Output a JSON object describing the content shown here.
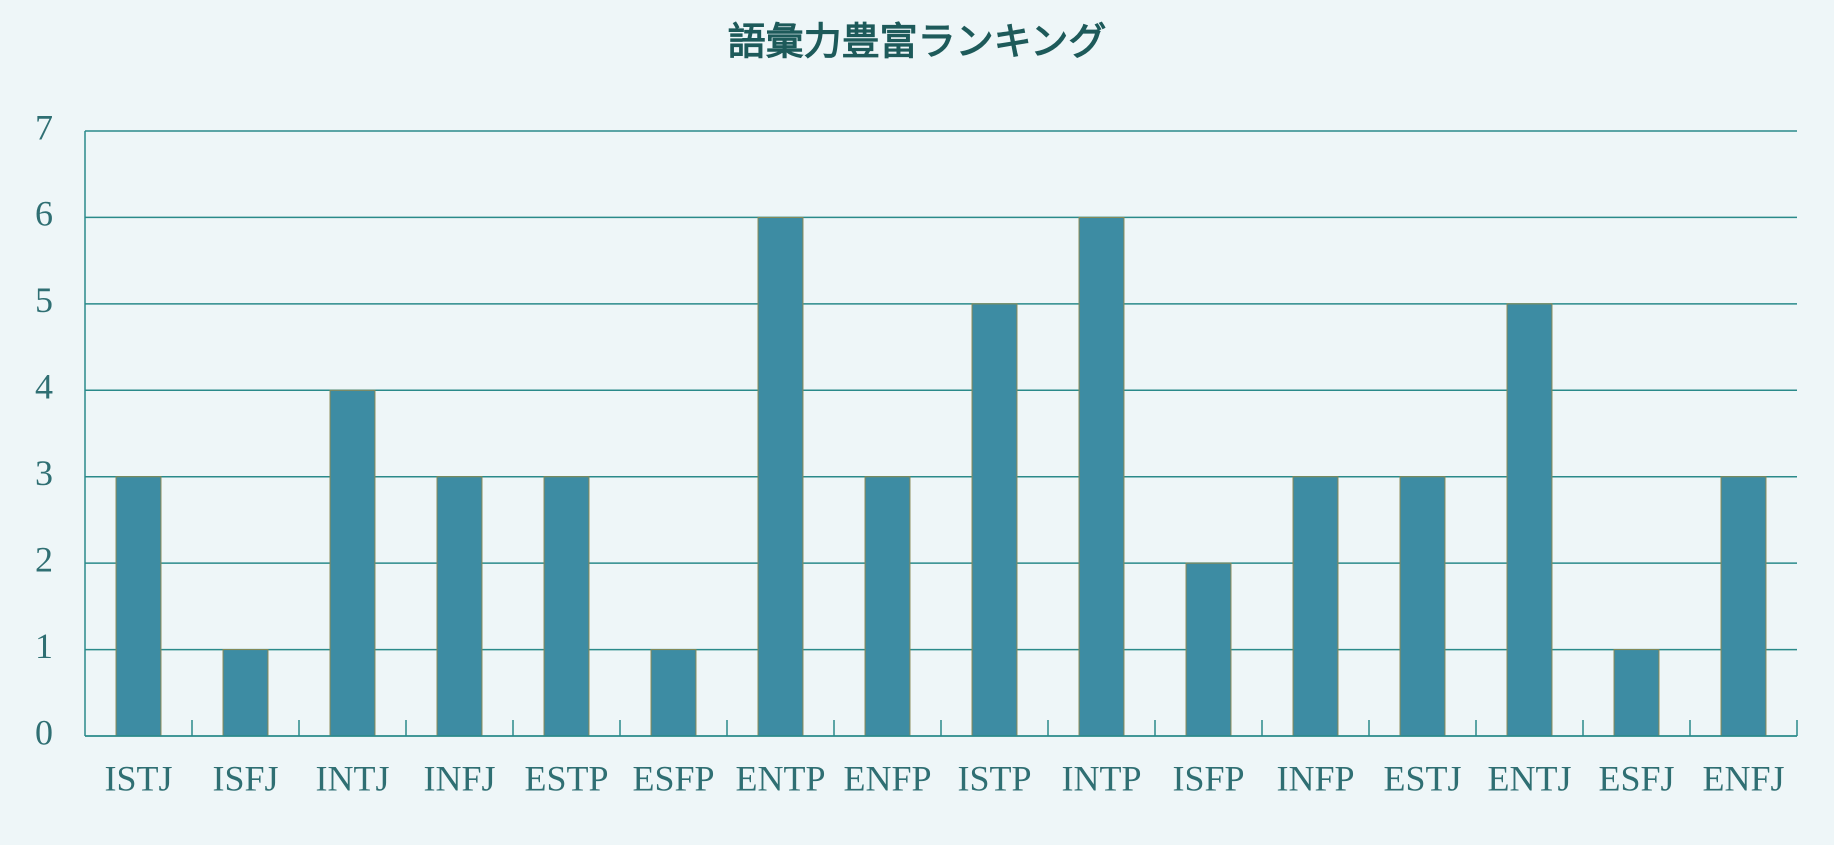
{
  "chart_data": {
    "type": "bar",
    "title": "語彙力豊富ランキング",
    "categories": [
      "ISTJ",
      "ISFJ",
      "INTJ",
      "INFJ",
      "ESTP",
      "ESFP",
      "ENTP",
      "ENFP",
      "ISTP",
      "INTP",
      "ISFP",
      "INFP",
      "ESTJ",
      "ENTJ",
      "ESFJ",
      "ENFJ"
    ],
    "values": [
      3,
      1,
      4,
      3,
      3,
      1,
      6,
      3,
      5,
      6,
      2,
      3,
      3,
      5,
      1,
      3
    ],
    "color": "#3d8ca3",
    "ylim": [
      0,
      7
    ],
    "yticks": [
      0,
      1,
      2,
      3,
      4,
      5,
      6,
      7
    ],
    "grid": true
  }
}
